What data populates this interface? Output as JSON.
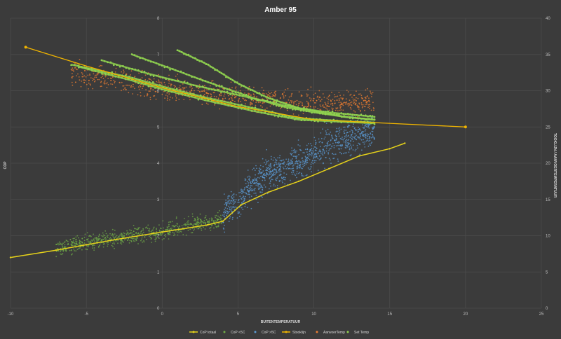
{
  "chart_data": {
    "type": "scatter",
    "title": "Amber 95",
    "xlabel": "BUITENTEMPERATUUR",
    "ylabel_left": "COP",
    "ylabel_right": "TOOKLIJN / AANVOERTEMPERATUUR",
    "xlim": [
      -10,
      25
    ],
    "ylim_left": [
      0,
      8
    ],
    "ylim_right": [
      0,
      40
    ],
    "x_ticks": [
      "-10",
      "-5",
      "0",
      "5",
      "10",
      "15",
      "20",
      "25"
    ],
    "y_left_ticks": [
      "0",
      "1",
      "2",
      "3",
      "4",
      "5",
      "6",
      "7",
      "8"
    ],
    "y_right_ticks": [
      "0",
      "5",
      "10",
      "15",
      "20",
      "25",
      "30",
      "35",
      "40"
    ],
    "grid": true,
    "legend_position": "bottom",
    "colors": {
      "background": "#3b3b3b",
      "grid": "#4d4d4d",
      "cop_totaal": "#e6d21a",
      "cop_lt5": "#70ad47",
      "cop_gt5": "#5b9bd5",
      "stooklijn": "#f0b400",
      "aanvoertemp": "#ed7d31",
      "set_temp": "#8fd14f"
    },
    "series": [
      {
        "name": "CoP totaal",
        "kind": "line",
        "axis": "left",
        "x": [
          -10,
          -7,
          -5,
          -3,
          0,
          3,
          4,
          5.2,
          7,
          9,
          11,
          13,
          15,
          16
        ],
        "y": [
          1.4,
          1.6,
          1.75,
          1.9,
          2.1,
          2.3,
          2.4,
          2.85,
          3.2,
          3.5,
          3.85,
          4.2,
          4.4,
          4.55
        ]
      },
      {
        "name": "CoP <5C",
        "kind": "scatter",
        "axis": "left",
        "x_range": [
          -7,
          4
        ],
        "trend": [
          [
            -7,
            1.65
          ],
          [
            -3,
            1.95
          ],
          [
            0,
            2.1
          ],
          [
            2,
            2.3
          ],
          [
            4,
            2.45
          ]
        ],
        "spread": 0.22,
        "count": 700
      },
      {
        "name": "CoP >5C",
        "kind": "scatter",
        "axis": "left",
        "x_range": [
          4,
          14
        ],
        "trend": [
          [
            4,
            2.6
          ],
          [
            5.2,
            3.0
          ],
          [
            6,
            3.4
          ],
          [
            7,
            3.75
          ],
          [
            9,
            4.0
          ],
          [
            11,
            4.5
          ],
          [
            13,
            4.8
          ],
          [
            14,
            4.9
          ]
        ],
        "spread": 0.45,
        "count": 1000
      },
      {
        "name": "Stooklijn",
        "kind": "line",
        "axis": "right",
        "x": [
          -9,
          -5,
          0,
          5,
          10,
          15,
          20
        ],
        "y": [
          36,
          33.4,
          30.4,
          27.8,
          26.0,
          25.5,
          25.0
        ]
      },
      {
        "name": "AanvoerTemp",
        "kind": "scatter",
        "axis": "right",
        "x_range": [
          -6,
          14
        ],
        "trend": [
          [
            -6,
            32.5
          ],
          [
            -2,
            31
          ],
          [
            0,
            30.4
          ],
          [
            3,
            29.6
          ],
          [
            6,
            28.8
          ],
          [
            10,
            28.6
          ],
          [
            14,
            28.4
          ]
        ],
        "spread": 1.6,
        "count": 900
      },
      {
        "name": "Set Temp",
        "kind": "bands",
        "axis": "right",
        "lines": [
          [
            [
              -6,
              33.6
            ],
            [
              -2,
              31.8
            ],
            [
              0,
              30.6
            ],
            [
              3,
              29.0
            ],
            [
              6,
              27.6
            ],
            [
              9,
              26.2
            ],
            [
              12,
              25.8
            ],
            [
              14,
              25.6
            ]
          ],
          [
            [
              -5.5,
              33.3
            ],
            [
              -2,
              31.4
            ],
            [
              0,
              30.2
            ],
            [
              3,
              28.6
            ],
            [
              6,
              27.2
            ],
            [
              9,
              26.0
            ],
            [
              12,
              25.7
            ],
            [
              14,
              25.5
            ]
          ],
          [
            [
              -4,
              34.2
            ],
            [
              -1,
              32.4
            ],
            [
              2,
              30.8
            ],
            [
              5,
              29.4
            ],
            [
              8,
              28.0
            ],
            [
              10,
              27.2
            ],
            [
              12,
              26.4
            ],
            [
              14,
              26.0
            ]
          ],
          [
            [
              -2,
              35.0
            ],
            [
              0,
              33.5
            ],
            [
              3,
              31.2
            ],
            [
              6,
              29.0
            ],
            [
              8,
              27.8
            ],
            [
              10,
              27.0
            ],
            [
              12,
              26.4
            ],
            [
              14,
              26.0
            ]
          ],
          [
            [
              1,
              35.6
            ],
            [
              3,
              33.6
            ],
            [
              5,
              31.0
            ],
            [
              7,
              29.0
            ],
            [
              9,
              27.6
            ],
            [
              11,
              27.0
            ],
            [
              13,
              26.6
            ],
            [
              14,
              26.4
            ]
          ]
        ],
        "count_per_line": 90
      }
    ]
  },
  "legend": [
    {
      "label": "CoP totaal",
      "marker": "line",
      "color": "#e6d21a"
    },
    {
      "label": "CoP <5C",
      "marker": "dot",
      "color": "#70ad47"
    },
    {
      "label": "CoP >5C",
      "marker": "dot",
      "color": "#5b9bd5"
    },
    {
      "label": "Stooklijn",
      "marker": "line",
      "color": "#f0b400"
    },
    {
      "label": "AanvoerTemp",
      "marker": "dot",
      "color": "#ed7d31"
    },
    {
      "label": "Set Temp",
      "marker": "dot",
      "color": "#8fd14f"
    }
  ]
}
